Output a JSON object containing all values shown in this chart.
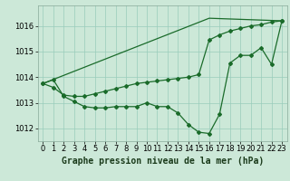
{
  "xlabel": "Graphe pression niveau de la mer (hPa)",
  "ylabel": "",
  "background_color": "#cce8d8",
  "grid_color": "#99ccbb",
  "line_color": "#1a6b2a",
  "xlim": [
    -0.5,
    23.5
  ],
  "ylim": [
    1011.5,
    1016.8
  ],
  "yticks": [
    1012,
    1013,
    1014,
    1015,
    1016
  ],
  "xticks": [
    0,
    1,
    2,
    3,
    4,
    5,
    6,
    7,
    8,
    9,
    10,
    11,
    12,
    13,
    14,
    15,
    16,
    17,
    18,
    19,
    20,
    21,
    22,
    23
  ],
  "line1_x": [
    0,
    1,
    2,
    3,
    4,
    5,
    6,
    7,
    8,
    9,
    10,
    11,
    12,
    13,
    14,
    15,
    16,
    17,
    18,
    19,
    20,
    21,
    22,
    23
  ],
  "line1_y": [
    1013.75,
    1013.9,
    1013.25,
    1013.05,
    1012.85,
    1012.8,
    1012.8,
    1012.85,
    1012.85,
    1012.85,
    1013.0,
    1012.85,
    1012.85,
    1012.6,
    1012.15,
    1011.85,
    1011.8,
    1012.55,
    1014.55,
    1014.85,
    1014.85,
    1015.15,
    1014.5,
    1016.2
  ],
  "line2_x": [
    0,
    1,
    2,
    3,
    4,
    5,
    6,
    7,
    8,
    9,
    10,
    11,
    12,
    13,
    14,
    15,
    16,
    17,
    18,
    19,
    20,
    21,
    22,
    23
  ],
  "line2_y": [
    1013.75,
    1013.6,
    1013.3,
    1013.25,
    1013.25,
    1013.35,
    1013.45,
    1013.55,
    1013.65,
    1013.75,
    1013.8,
    1013.85,
    1013.9,
    1013.95,
    1014.0,
    1014.1,
    1015.45,
    1015.65,
    1015.8,
    1015.9,
    1016.0,
    1016.05,
    1016.15,
    1016.2
  ],
  "line3_x": [
    0,
    16,
    23
  ],
  "line3_y": [
    1013.75,
    1016.3,
    1016.2
  ],
  "fontsize_xlabel": 7,
  "tick_fontsize": 6,
  "lw": 0.9,
  "marker_size": 2.0
}
